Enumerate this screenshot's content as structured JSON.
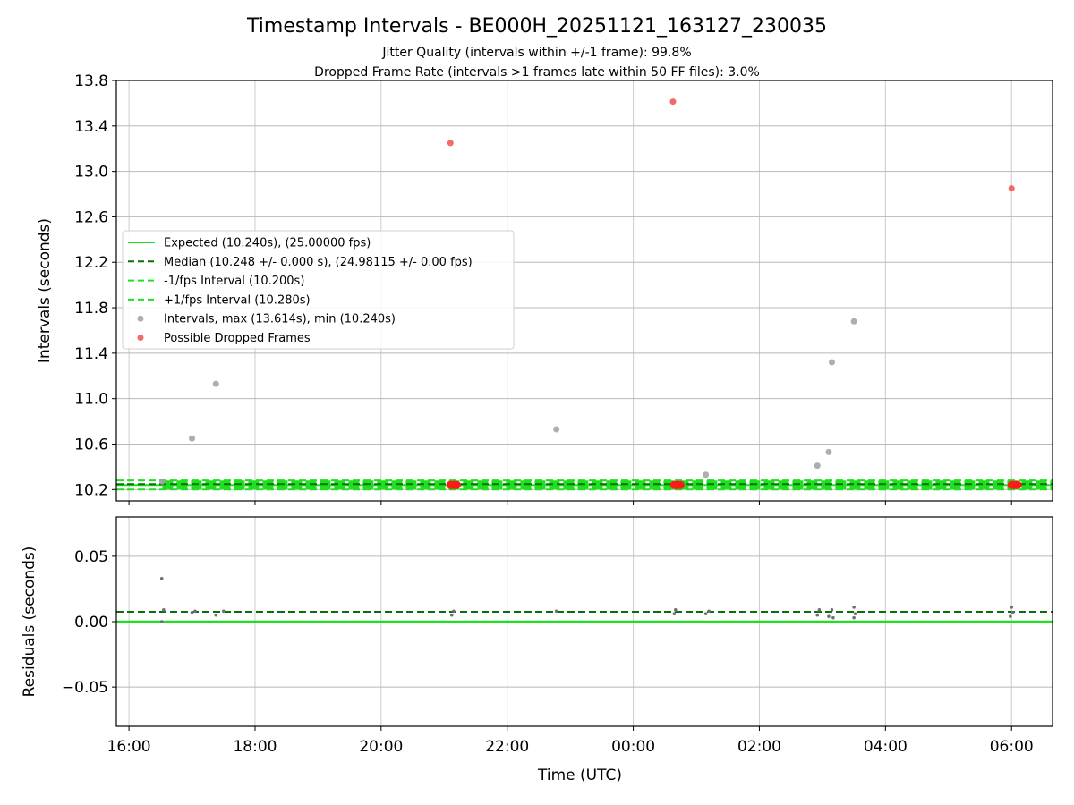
{
  "title": "Timestamp Intervals - BE000H_20251121_163127_230035",
  "subtitle_1": "Jitter Quality (intervals within +/-1 frame): 99.8%",
  "subtitle_2": "Dropped Frame Rate (intervals >1 frames late within 50 FF files): 3.0%",
  "chart_data": [
    {
      "type": "scatter",
      "panel": "top",
      "ylabel": "Intervals (seconds)",
      "xlabel": "",
      "x_unit": "hours since 16:00 UTC",
      "xlim": [
        -0.2,
        14.65
      ],
      "ylim": [
        10.1,
        13.8
      ],
      "yticks": [
        10.2,
        10.6,
        11.0,
        11.4,
        11.8,
        12.2,
        12.6,
        13.0,
        13.4,
        13.8
      ],
      "ytick_labels": [
        "10.2",
        "10.6",
        "11.0",
        "11.4",
        "11.8",
        "12.2",
        "12.6",
        "13.0",
        "13.4",
        "13.8"
      ],
      "grid": true,
      "legend_position": "center-left",
      "legend": [
        {
          "label": "Expected (10.240s), (25.00000 fps)",
          "style": "solid",
          "color": "#1ee01e"
        },
        {
          "label": "Median (10.248 +/- 0.000 s), (24.98115 +/- 0.00 fps)",
          "style": "dashed",
          "color": "#0a6e0a"
        },
        {
          "label": "-1/fps Interval (10.200s)",
          "style": "dashed",
          "color": "#1ee01e"
        },
        {
          "label": "+1/fps Interval (10.280s)",
          "style": "dashed",
          "color": "#1ee01e"
        },
        {
          "label": "Intervals, max (13.614s), min (10.240s)",
          "style": "marker",
          "color": "#a0a0a0"
        },
        {
          "label": "Possible Dropped Frames",
          "style": "marker",
          "color": "#f05050"
        }
      ],
      "hlines": {
        "expected": 10.24,
        "median": 10.248,
        "lower": 10.2,
        "upper": 10.28
      },
      "series": [
        {
          "name": "Intervals, max (13.614s), min (10.240s)",
          "color": "#a0a0a0",
          "points": [
            [
              0.53,
              10.27
            ],
            [
              1.0,
              10.65
            ],
            [
              1.38,
              11.13
            ],
            [
              6.78,
              10.73
            ],
            [
              9.15,
              10.33
            ],
            [
              10.92,
              10.41
            ],
            [
              11.1,
              10.53
            ],
            [
              11.15,
              11.32
            ],
            [
              11.5,
              11.68
            ]
          ]
        },
        {
          "name": "Possible Dropped Frames",
          "color": "#f05050",
          "points": [
            [
              5.1,
              13.25
            ],
            [
              8.63,
              13.614
            ],
            [
              14.0,
              12.85
            ]
          ]
        }
      ],
      "dropped_clusters": [
        [
          5.1,
          5.2
        ],
        [
          8.65,
          8.75
        ],
        [
          14.0,
          14.1
        ]
      ],
      "baseline_range": [
        0.53,
        14.65
      ]
    },
    {
      "type": "scatter",
      "panel": "bottom",
      "ylabel": "Residuals (seconds)",
      "xlabel": "Time (UTC)",
      "x_unit": "hours since 16:00 UTC",
      "xlim": [
        -0.2,
        14.65
      ],
      "ylim": [
        -0.08,
        0.08
      ],
      "yticks": [
        -0.05,
        0.0,
        0.05
      ],
      "ytick_labels": [
        "−0.05",
        "0.00",
        "0.05"
      ],
      "xticks": [
        0,
        2,
        4,
        6,
        8,
        10,
        12,
        14
      ],
      "xtick_labels": [
        "16:00",
        "18:00",
        "20:00",
        "22:00",
        "00:00",
        "02:00",
        "04:00",
        "06:00"
      ],
      "grid": true,
      "hlines": {
        "zero": 0.0,
        "median": 0.0075
      },
      "series": [
        {
          "name": "Residuals",
          "color": "#707070",
          "points": [
            [
              0.52,
              0.033
            ],
            [
              0.52,
              0.0
            ],
            [
              0.55,
              0.009
            ],
            [
              1.0,
              0.007
            ],
            [
              1.05,
              0.008
            ],
            [
              1.38,
              0.005
            ],
            [
              1.5,
              0.008
            ],
            [
              5.12,
              0.005
            ],
            [
              5.15,
              0.008
            ],
            [
              6.78,
              0.008
            ],
            [
              8.65,
              0.006
            ],
            [
              8.67,
              0.009
            ],
            [
              9.15,
              0.006
            ],
            [
              9.2,
              0.008
            ],
            [
              10.92,
              0.005
            ],
            [
              10.95,
              0.009
            ],
            [
              11.1,
              0.004
            ],
            [
              11.15,
              0.009
            ],
            [
              11.17,
              0.003
            ],
            [
              11.5,
              0.003
            ],
            [
              11.5,
              0.011
            ],
            [
              11.52,
              0.006
            ],
            [
              13.98,
              0.004
            ],
            [
              14.0,
              0.011
            ],
            [
              14.02,
              0.007
            ]
          ]
        }
      ]
    }
  ]
}
